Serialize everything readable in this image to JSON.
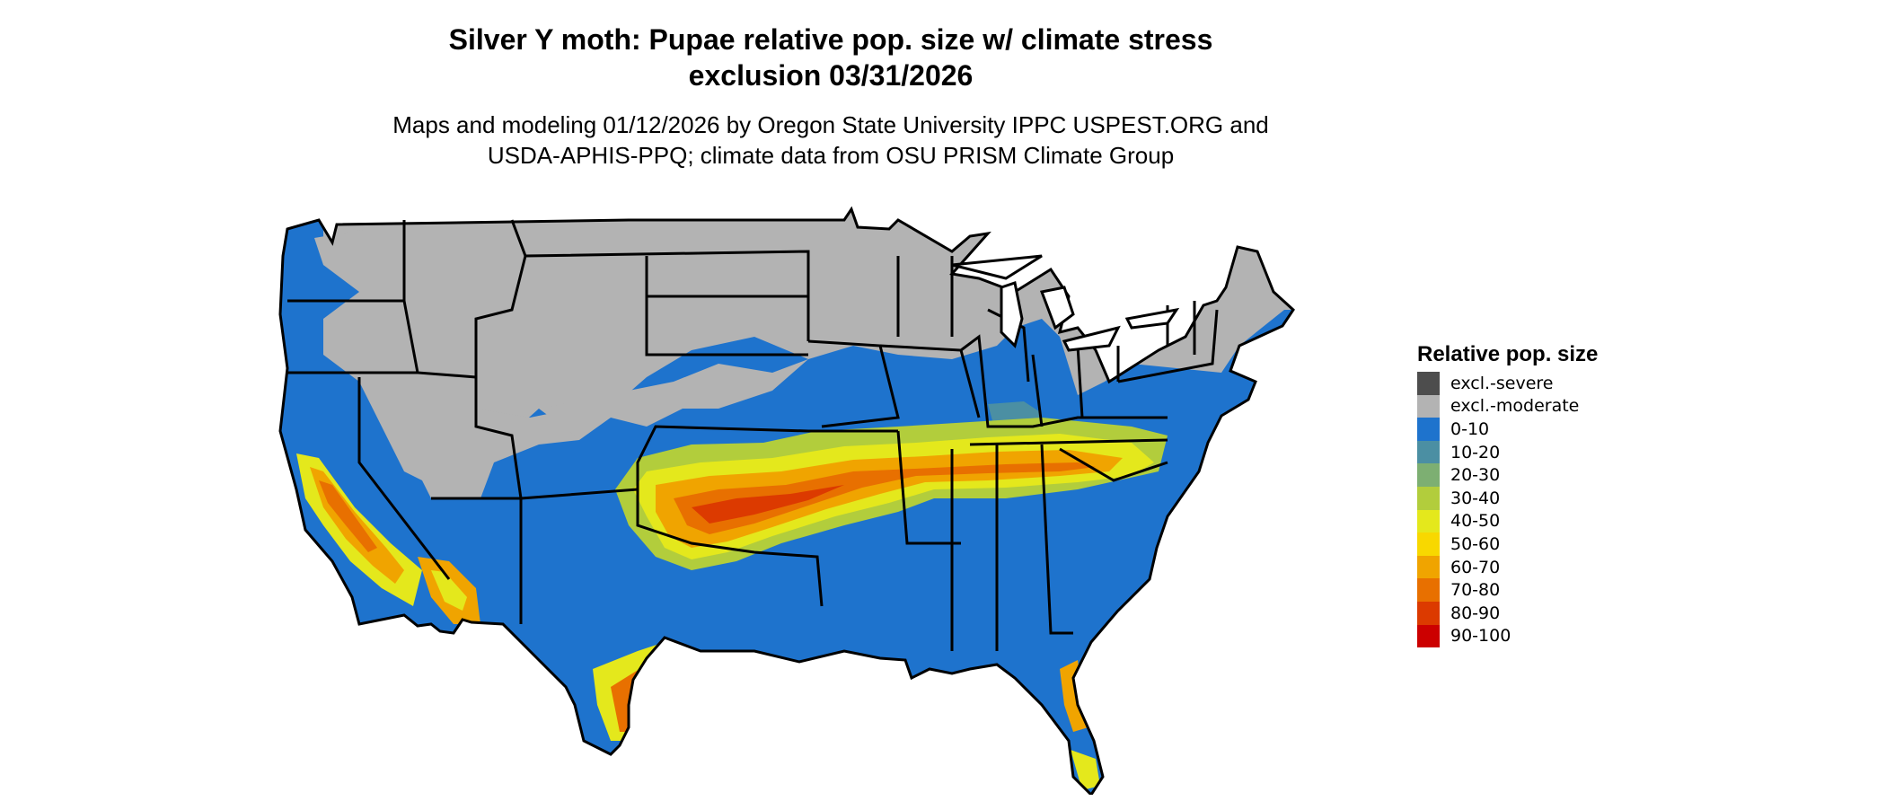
{
  "title": {
    "line1": "Silver Y moth: Pupae relative pop. size w/ climate stress",
    "line2": "exclusion 03/31/2026"
  },
  "subtitle": {
    "line1": "Maps and modeling 01/12/2026 by Oregon State University IPPC USPEST.ORG and",
    "line2": "USDA-APHIS-PPQ; climate data from OSU PRISM Climate Group"
  },
  "legend": {
    "title": "Relative pop. size",
    "items": [
      {
        "label": "excl.-severe",
        "color": "#4d4d4d"
      },
      {
        "label": "excl.-moderate",
        "color": "#b3b3b3"
      },
      {
        "label": "0-10",
        "color": "#1e73cd"
      },
      {
        "label": "10-20",
        "color": "#4b8fa3"
      },
      {
        "label": "20-30",
        "color": "#7daf72"
      },
      {
        "label": "30-40",
        "color": "#b2cd3c"
      },
      {
        "label": "40-50",
        "color": "#e4e81c"
      },
      {
        "label": "50-60",
        "color": "#f8d800"
      },
      {
        "label": "60-70",
        "color": "#f0a400"
      },
      {
        "label": "70-80",
        "color": "#e87000"
      },
      {
        "label": "80-90",
        "color": "#dc3a00"
      },
      {
        "label": "90-100",
        "color": "#cc0000"
      }
    ]
  }
}
